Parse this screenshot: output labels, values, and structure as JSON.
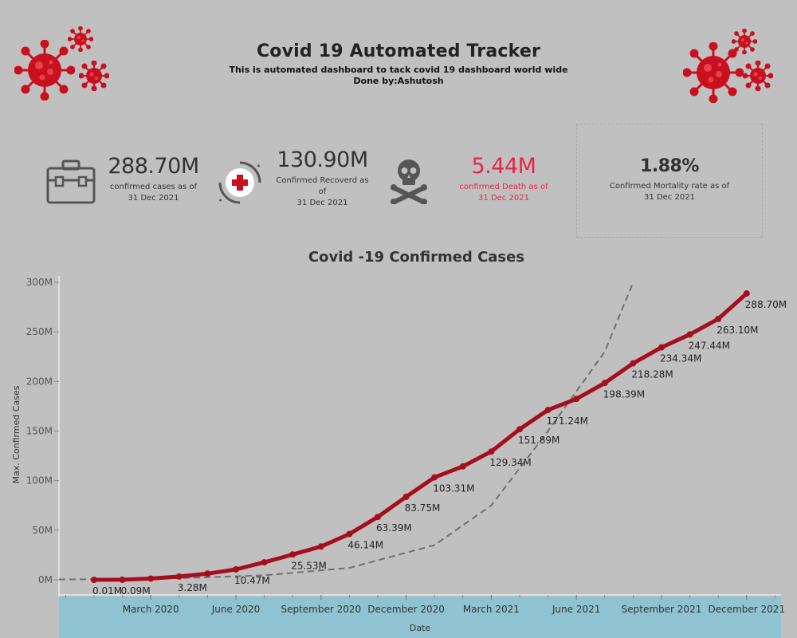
{
  "header": {
    "title": "Covid 19 Automated Tracker",
    "subtitle_line1": "This is automated dashboard to tack covid 19 dashboard world wide",
    "subtitle_line2": "Done by:Ashutosh"
  },
  "kpis": {
    "confirmed": {
      "value": "288.70M",
      "label_line1": "confirmed cases as of",
      "label_line2": "31 Dec 2021"
    },
    "recovered": {
      "value": "130.90M",
      "label_line1": "Confirmed Recoverd as",
      "label_line2": "of",
      "label_line3": "31 Dec 2021"
    },
    "death": {
      "value": "5.44M",
      "label_line1": "confirmed Death as of",
      "label_line2": "31 Dec 2021",
      "color": "#e8254b"
    },
    "mortality": {
      "value": "1.88%",
      "label_line1": "Confirmed Mortality rate as of",
      "label_line2": "31 Dec 2021"
    }
  },
  "colors": {
    "background": "#c0c0c0",
    "series": "#a50e1f",
    "axis_band": "#8fc3d1",
    "trend": "#707070",
    "virus": "#c8101e"
  },
  "chart_data": {
    "type": "line",
    "title": "Covid -19 Confirmed Cases",
    "xlabel": "Date",
    "ylabel": "Max. Confirmed Cases",
    "ylim": [
      0,
      300000000
    ],
    "y_ticks": [
      0,
      50000000,
      100000000,
      150000000,
      200000000,
      250000000,
      300000000
    ],
    "y_tick_labels": [
      "0M",
      "50M",
      "100M",
      "150M",
      "200M",
      "250M",
      "300M"
    ],
    "x_tick_labels": [
      "March 2020",
      "June 2020",
      "September 2020",
      "December 2020",
      "March 2021",
      "June 2021",
      "September 2021",
      "December 2021"
    ],
    "x_tick_months": [
      "2020-03",
      "2020-06",
      "2020-09",
      "2020-12",
      "2021-03",
      "2021-06",
      "2021-09",
      "2021-12"
    ],
    "grid": false,
    "series": [
      {
        "x": [
          "2020-01",
          "2020-02",
          "2020-03",
          "2020-04",
          "2020-05",
          "2020-06",
          "2020-07",
          "2020-08",
          "2020-09",
          "2020-10",
          "2020-11",
          "2020-12",
          "2021-01",
          "2021-02",
          "2021-03",
          "2021-04",
          "2021-05",
          "2021-06",
          "2021-07",
          "2021-08",
          "2021-09",
          "2021-10",
          "2021-11",
          "2021-12"
        ],
        "values": [
          0.01,
          0.09,
          1.2,
          3.28,
          6.2,
          10.47,
          17.6,
          25.53,
          33.5,
          46.14,
          63.39,
          83.75,
          103.31,
          114.4,
          129.34,
          151.89,
          171.24,
          182.4,
          198.39,
          218.28,
          234.34,
          247.44,
          263.1,
          288.7
        ],
        "unit_multiplier": 1000000,
        "data_labels": [
          {
            "x": "2020-01",
            "text": "0.01M"
          },
          {
            "x": "2020-02",
            "text": "0.09M"
          },
          {
            "x": "2020-04",
            "text": "3.28M"
          },
          {
            "x": "2020-06",
            "text": "10.47M"
          },
          {
            "x": "2020-08",
            "text": "25.53M"
          },
          {
            "x": "2020-10",
            "text": "46.14M"
          },
          {
            "x": "2020-11",
            "text": "63.39M"
          },
          {
            "x": "2020-12",
            "text": "83.75M"
          },
          {
            "x": "2021-01",
            "text": "103.31M"
          },
          {
            "x": "2021-03",
            "text": "129.34M"
          },
          {
            "x": "2021-04",
            "text": "151.89M"
          },
          {
            "x": "2021-05",
            "text": "171.24M"
          },
          {
            "x": "2021-07",
            "text": "198.39M"
          },
          {
            "x": "2021-08",
            "text": "218.28M"
          },
          {
            "x": "2021-09",
            "text": "234.34M"
          },
          {
            "x": "2021-10",
            "text": "247.44M"
          },
          {
            "x": "2021-11",
            "text": "263.10M"
          },
          {
            "x": "2021-12",
            "text": "288.70M"
          }
        ]
      }
    ],
    "trend_line": {
      "style": "dashed",
      "type": "exponential",
      "points": [
        {
          "x": "2020-01",
          "value": 0.5
        },
        {
          "x": "2020-04",
          "value": 1.6
        },
        {
          "x": "2020-07",
          "value": 4.5
        },
        {
          "x": "2020-10",
          "value": 12
        },
        {
          "x": "2021-01",
          "value": 35
        },
        {
          "x": "2021-03",
          "value": 75
        },
        {
          "x": "2021-05",
          "value": 150
        },
        {
          "x": "2021-07",
          "value": 230
        },
        {
          "x": "2021-08",
          "value": 300
        }
      ]
    }
  }
}
